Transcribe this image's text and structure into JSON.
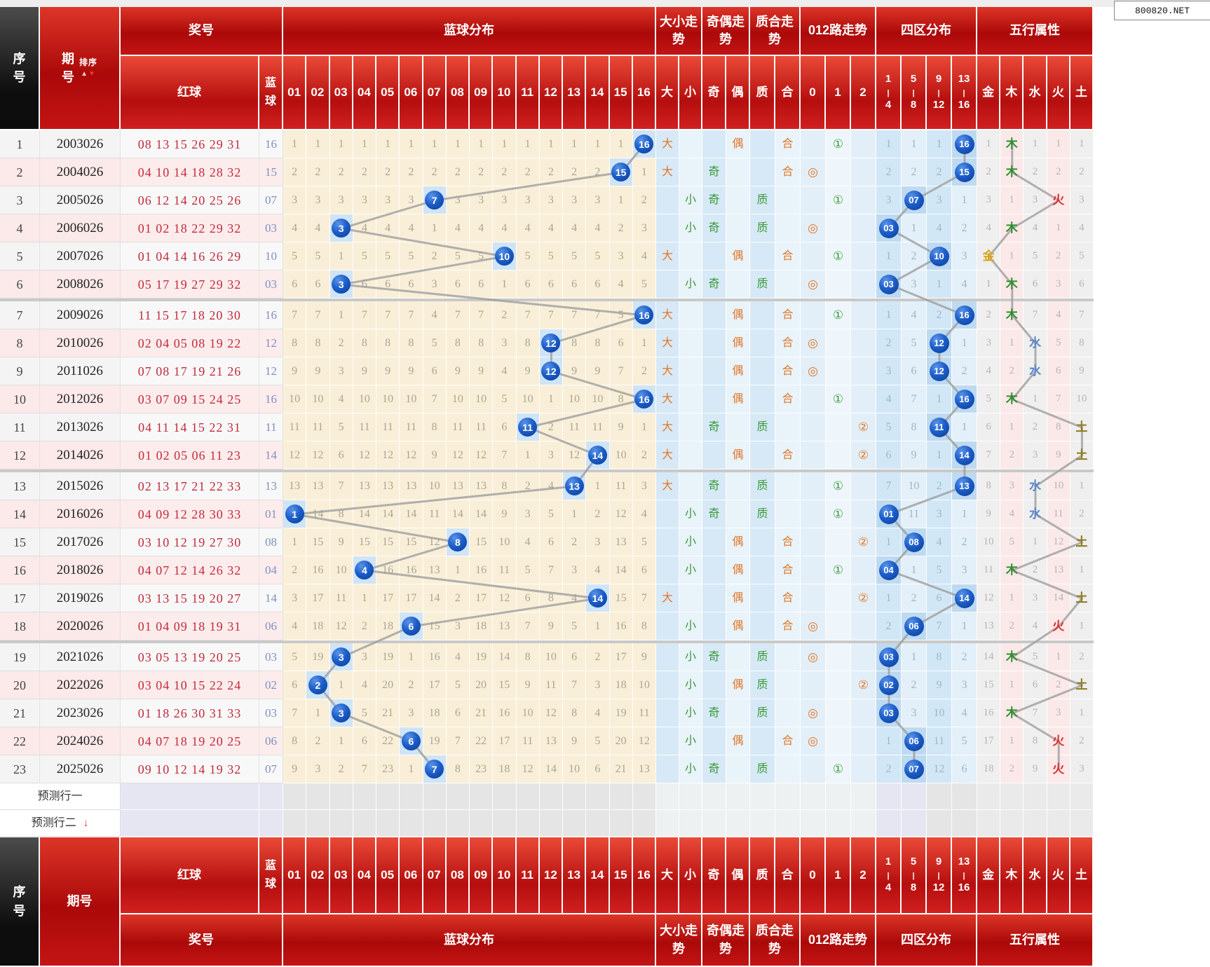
{
  "site_badge": "800820.NET",
  "header": {
    "seq": "序号",
    "period": "期号",
    "sort": "排序",
    "sort_up": "▲",
    "sort_down": "▼",
    "prize": "奖号",
    "red": "红球",
    "blue": "蓝球",
    "blue_dist": "蓝球分布",
    "big_small_trend": "大小走势",
    "odd_even_trend": "奇偶走势",
    "prime_comp_trend": "质合走势",
    "route_trend": "012路走势",
    "zone_dist": "四区分布",
    "element_attr": "五行属性",
    "balls": [
      "01",
      "02",
      "03",
      "04",
      "05",
      "06",
      "07",
      "08",
      "09",
      "10",
      "11",
      "12",
      "13",
      "14",
      "15",
      "16"
    ],
    "pair_labels": [
      "大",
      "小",
      "奇",
      "偶",
      "质",
      "合"
    ],
    "routes": [
      "0",
      "1",
      "2"
    ],
    "route_symbols": {
      "0": "◎",
      "1": "①",
      "2": "②"
    },
    "zones": [
      [
        "1",
        "4"
      ],
      [
        "5",
        "8"
      ],
      [
        "9",
        "12"
      ],
      [
        "13",
        "16"
      ]
    ],
    "elements": [
      "金",
      "木",
      "水",
      "火",
      "土"
    ]
  },
  "colors": {
    "big": "#e0782a",
    "small": "#3a9a3a",
    "odd": "#3a9a3a",
    "even": "#e0782a",
    "prime": "#3a9a3a",
    "comp": "#e0782a",
    "route0": "#e0782a",
    "route1": "#3a9a3a",
    "route2": "#e0782a",
    "ball_circle": "#1d5ec9",
    "red_ball_text": "#c22a3c",
    "blue_col_text": "#8090c0",
    "element_colors": [
      "#d8a51d",
      "#2f8f2f",
      "#5b86c6",
      "#dc3030",
      "#8f7a1a"
    ],
    "trend_line": "#9e9e9e"
  },
  "prediction_rows": [
    {
      "label": "预测行一",
      "arrow": ""
    },
    {
      "label": "预测行二",
      "arrow": "↓"
    }
  ],
  "chart_data": {
    "type": "table",
    "row_groups_of": 6,
    "columns": [
      "序号",
      "期号",
      "红球",
      "蓝球",
      "蓝球分布01-16",
      "大小走势",
      "奇偶走势",
      "质合走势",
      "012路走势",
      "四区分布",
      "五行属性"
    ],
    "rows": [
      {
        "seq": 1,
        "period": "2003026",
        "reds": [
          "08",
          "13",
          "15",
          "26",
          "29",
          "31"
        ],
        "blue": "16",
        "big_small": "大",
        "odd_even": "偶",
        "prime_comp": "合",
        "route": "1",
        "dist": [
          1,
          1,
          1,
          1,
          1,
          1,
          1,
          1,
          1,
          1,
          1,
          1,
          1,
          1,
          1,
          null
        ],
        "zones": [
          1,
          1,
          1,
          null
        ],
        "elements": [
          1,
          null,
          1,
          1,
          1
        ]
      },
      {
        "seq": 2,
        "period": "2004026",
        "reds": [
          "04",
          "10",
          "14",
          "18",
          "28",
          "32"
        ],
        "blue": "15",
        "big_small": "大",
        "odd_even": "奇",
        "prime_comp": "合",
        "route": "0",
        "dist": [
          2,
          2,
          2,
          2,
          2,
          2,
          2,
          2,
          2,
          2,
          2,
          2,
          2,
          2,
          null,
          1
        ],
        "zones": [
          2,
          2,
          2,
          null
        ],
        "elements": [
          2,
          null,
          2,
          2,
          2
        ]
      },
      {
        "seq": 3,
        "period": "2005026",
        "reds": [
          "06",
          "12",
          "14",
          "20",
          "25",
          "26"
        ],
        "blue": "07",
        "big_small": "小",
        "odd_even": "奇",
        "prime_comp": "质",
        "route": "1",
        "dist": [
          3,
          3,
          3,
          3,
          3,
          3,
          null,
          3,
          3,
          3,
          3,
          3,
          3,
          3,
          1,
          2
        ],
        "zones": [
          3,
          null,
          3,
          1
        ],
        "elements": [
          3,
          1,
          3,
          null,
          3
        ]
      },
      {
        "seq": 4,
        "period": "2006026",
        "reds": [
          "01",
          "02",
          "18",
          "22",
          "29",
          "32"
        ],
        "blue": "03",
        "big_small": "小",
        "odd_even": "奇",
        "prime_comp": "质",
        "route": "0",
        "dist": [
          4,
          4,
          null,
          4,
          4,
          4,
          1,
          4,
          4,
          4,
          4,
          4,
          4,
          4,
          2,
          3
        ],
        "zones": [
          null,
          1,
          4,
          2
        ],
        "elements": [
          4,
          null,
          4,
          1,
          4
        ]
      },
      {
        "seq": 5,
        "period": "2007026",
        "reds": [
          "01",
          "04",
          "14",
          "16",
          "26",
          "29"
        ],
        "blue": "10",
        "big_small": "大",
        "odd_even": "偶",
        "prime_comp": "合",
        "route": "1",
        "dist": [
          5,
          5,
          1,
          5,
          5,
          5,
          2,
          5,
          5,
          null,
          5,
          5,
          5,
          5,
          3,
          4
        ],
        "zones": [
          1,
          2,
          null,
          3
        ],
        "elements": [
          null,
          1,
          5,
          2,
          5
        ]
      },
      {
        "seq": 6,
        "period": "2008026",
        "reds": [
          "05",
          "17",
          "19",
          "27",
          "29",
          "32"
        ],
        "blue": "03",
        "big_small": "小",
        "odd_even": "奇",
        "prime_comp": "质",
        "route": "0",
        "dist": [
          6,
          6,
          null,
          6,
          6,
          6,
          3,
          6,
          6,
          1,
          6,
          6,
          6,
          6,
          4,
          5
        ],
        "zones": [
          null,
          3,
          1,
          4
        ],
        "elements": [
          1,
          null,
          6,
          3,
          6
        ]
      },
      {
        "seq": 7,
        "period": "2009026",
        "reds": [
          "11",
          "15",
          "17",
          "18",
          "20",
          "30"
        ],
        "blue": "16",
        "big_small": "大",
        "odd_even": "偶",
        "prime_comp": "合",
        "route": "1",
        "dist": [
          7,
          7,
          1,
          7,
          7,
          7,
          4,
          7,
          7,
          2,
          7,
          7,
          7,
          7,
          5,
          null
        ],
        "zones": [
          1,
          4,
          2,
          null
        ],
        "elements": [
          2,
          null,
          7,
          4,
          7
        ]
      },
      {
        "seq": 8,
        "period": "2010026",
        "reds": [
          "02",
          "04",
          "05",
          "08",
          "19",
          "22"
        ],
        "blue": "12",
        "big_small": "大",
        "odd_even": "偶",
        "prime_comp": "合",
        "route": "0",
        "dist": [
          8,
          8,
          2,
          8,
          8,
          8,
          5,
          8,
          8,
          3,
          8,
          null,
          8,
          8,
          6,
          1
        ],
        "zones": [
          2,
          5,
          null,
          1
        ],
        "elements": [
          3,
          1,
          null,
          5,
          8
        ]
      },
      {
        "seq": 9,
        "period": "2011026",
        "reds": [
          "07",
          "08",
          "17",
          "19",
          "21",
          "26"
        ],
        "blue": "12",
        "big_small": "大",
        "odd_even": "偶",
        "prime_comp": "合",
        "route": "0",
        "dist": [
          9,
          9,
          3,
          9,
          9,
          9,
          6,
          9,
          9,
          4,
          9,
          null,
          9,
          9,
          7,
          2
        ],
        "zones": [
          3,
          6,
          null,
          2
        ],
        "elements": [
          4,
          2,
          null,
          6,
          9
        ]
      },
      {
        "seq": 10,
        "period": "2012026",
        "reds": [
          "03",
          "07",
          "09",
          "15",
          "24",
          "25"
        ],
        "blue": "16",
        "big_small": "大",
        "odd_even": "偶",
        "prime_comp": "合",
        "route": "1",
        "dist": [
          10,
          10,
          4,
          10,
          10,
          10,
          7,
          10,
          10,
          5,
          10,
          1,
          10,
          10,
          8,
          null
        ],
        "zones": [
          4,
          7,
          1,
          null
        ],
        "elements": [
          5,
          null,
          1,
          7,
          10
        ]
      },
      {
        "seq": 11,
        "period": "2013026",
        "reds": [
          "04",
          "11",
          "14",
          "15",
          "22",
          "31"
        ],
        "blue": "11",
        "big_small": "大",
        "odd_even": "奇",
        "prime_comp": "质",
        "route": "2",
        "dist": [
          11,
          11,
          5,
          11,
          11,
          11,
          8,
          11,
          11,
          6,
          null,
          2,
          11,
          11,
          9,
          1
        ],
        "zones": [
          5,
          8,
          null,
          1
        ],
        "elements": [
          6,
          1,
          2,
          8,
          null
        ]
      },
      {
        "seq": 12,
        "period": "2014026",
        "reds": [
          "01",
          "02",
          "05",
          "06",
          "11",
          "23"
        ],
        "blue": "14",
        "big_small": "大",
        "odd_even": "偶",
        "prime_comp": "合",
        "route": "2",
        "dist": [
          12,
          12,
          6,
          12,
          12,
          12,
          9,
          12,
          12,
          7,
          1,
          3,
          12,
          null,
          10,
          2
        ],
        "zones": [
          6,
          9,
          1,
          null
        ],
        "elements": [
          7,
          2,
          3,
          9,
          null
        ]
      },
      {
        "seq": 13,
        "period": "2015026",
        "reds": [
          "02",
          "13",
          "17",
          "21",
          "22",
          "33"
        ],
        "blue": "13",
        "big_small": "大",
        "odd_even": "奇",
        "prime_comp": "质",
        "route": "1",
        "dist": [
          13,
          13,
          7,
          13,
          13,
          13,
          10,
          13,
          13,
          8,
          2,
          4,
          null,
          1,
          11,
          3
        ],
        "zones": [
          7,
          10,
          2,
          null
        ],
        "elements": [
          8,
          3,
          null,
          10,
          1
        ]
      },
      {
        "seq": 14,
        "period": "2016026",
        "reds": [
          "04",
          "09",
          "12",
          "28",
          "30",
          "33"
        ],
        "blue": "01",
        "big_small": "小",
        "odd_even": "奇",
        "prime_comp": "质",
        "route": "1",
        "dist": [
          null,
          14,
          8,
          14,
          14,
          14,
          11,
          14,
          14,
          9,
          3,
          5,
          1,
          2,
          12,
          4
        ],
        "zones": [
          null,
          11,
          3,
          1
        ],
        "elements": [
          9,
          4,
          null,
          11,
          2
        ]
      },
      {
        "seq": 15,
        "period": "2017026",
        "reds": [
          "03",
          "10",
          "12",
          "19",
          "27",
          "30"
        ],
        "blue": "08",
        "big_small": "小",
        "odd_even": "偶",
        "prime_comp": "合",
        "route": "2",
        "dist": [
          1,
          15,
          9,
          15,
          15,
          15,
          12,
          null,
          15,
          10,
          4,
          6,
          2,
          3,
          13,
          5
        ],
        "zones": [
          1,
          null,
          4,
          2
        ],
        "elements": [
          10,
          5,
          1,
          12,
          null
        ]
      },
      {
        "seq": 16,
        "period": "2018026",
        "reds": [
          "04",
          "07",
          "12",
          "14",
          "26",
          "32"
        ],
        "blue": "04",
        "big_small": "小",
        "odd_even": "偶",
        "prime_comp": "合",
        "route": "1",
        "dist": [
          2,
          16,
          10,
          null,
          16,
          16,
          13,
          1,
          16,
          11,
          5,
          7,
          3,
          4,
          14,
          6
        ],
        "zones": [
          null,
          1,
          5,
          3
        ],
        "elements": [
          11,
          null,
          2,
          13,
          1
        ]
      },
      {
        "seq": 17,
        "period": "2019026",
        "reds": [
          "03",
          "13",
          "15",
          "19",
          "20",
          "27"
        ],
        "blue": "14",
        "big_small": "大",
        "odd_even": "偶",
        "prime_comp": "合",
        "route": "2",
        "dist": [
          3,
          17,
          11,
          1,
          17,
          17,
          14,
          2,
          17,
          12,
          6,
          8,
          4,
          null,
          15,
          7
        ],
        "zones": [
          1,
          2,
          6,
          null
        ],
        "elements": [
          12,
          1,
          3,
          14,
          null
        ]
      },
      {
        "seq": 18,
        "period": "2020026",
        "reds": [
          "01",
          "04",
          "09",
          "18",
          "19",
          "31"
        ],
        "blue": "06",
        "big_small": "小",
        "odd_even": "偶",
        "prime_comp": "合",
        "route": "0",
        "dist": [
          4,
          18,
          12,
          2,
          18,
          null,
          15,
          3,
          18,
          13,
          7,
          9,
          5,
          1,
          16,
          8
        ],
        "zones": [
          2,
          null,
          7,
          1
        ],
        "elements": [
          13,
          2,
          4,
          null,
          1
        ]
      },
      {
        "seq": 19,
        "period": "2021026",
        "reds": [
          "03",
          "05",
          "13",
          "19",
          "20",
          "25"
        ],
        "blue": "03",
        "big_small": "小",
        "odd_even": "奇",
        "prime_comp": "质",
        "route": "0",
        "dist": [
          5,
          19,
          null,
          3,
          19,
          1,
          16,
          4,
          19,
          14,
          8,
          10,
          6,
          2,
          17,
          9
        ],
        "zones": [
          null,
          1,
          8,
          2
        ],
        "elements": [
          14,
          null,
          5,
          1,
          2
        ]
      },
      {
        "seq": 20,
        "period": "2022026",
        "reds": [
          "03",
          "04",
          "10",
          "15",
          "22",
          "24"
        ],
        "blue": "02",
        "big_small": "小",
        "odd_even": "偶",
        "prime_comp": "质",
        "route": "2",
        "dist": [
          6,
          null,
          1,
          4,
          20,
          2,
          17,
          5,
          20,
          15,
          9,
          11,
          7,
          3,
          18,
          10
        ],
        "zones": [
          null,
          2,
          9,
          3
        ],
        "elements": [
          15,
          1,
          6,
          2,
          null
        ]
      },
      {
        "seq": 21,
        "period": "2023026",
        "reds": [
          "01",
          "18",
          "26",
          "30",
          "31",
          "33"
        ],
        "blue": "03",
        "big_small": "小",
        "odd_even": "奇",
        "prime_comp": "质",
        "route": "0",
        "dist": [
          7,
          1,
          null,
          5,
          21,
          3,
          18,
          6,
          21,
          16,
          10,
          12,
          8,
          4,
          19,
          11
        ],
        "zones": [
          null,
          3,
          10,
          4
        ],
        "elements": [
          16,
          null,
          7,
          3,
          1
        ]
      },
      {
        "seq": 22,
        "period": "2024026",
        "reds": [
          "04",
          "07",
          "18",
          "19",
          "20",
          "25"
        ],
        "blue": "06",
        "big_small": "小",
        "odd_even": "偶",
        "prime_comp": "合",
        "route": "0",
        "dist": [
          8,
          2,
          1,
          6,
          22,
          null,
          19,
          7,
          22,
          17,
          11,
          13,
          9,
          5,
          20,
          12
        ],
        "zones": [
          1,
          null,
          11,
          5
        ],
        "elements": [
          17,
          1,
          8,
          null,
          2
        ]
      },
      {
        "seq": 23,
        "period": "2025026",
        "reds": [
          "09",
          "10",
          "12",
          "14",
          "19",
          "32"
        ],
        "blue": "07",
        "big_small": "小",
        "odd_even": "奇",
        "prime_comp": "质",
        "route": "1",
        "dist": [
          9,
          3,
          2,
          7,
          23,
          1,
          null,
          8,
          23,
          18,
          12,
          14,
          10,
          6,
          21,
          13
        ],
        "zones": [
          2,
          null,
          12,
          6
        ],
        "elements": [
          18,
          2,
          9,
          null,
          3
        ]
      }
    ]
  }
}
